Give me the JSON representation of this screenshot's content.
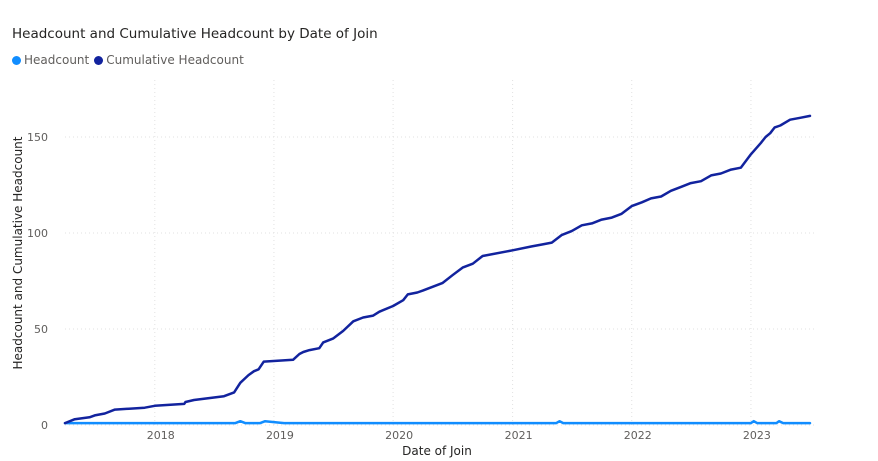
{
  "chart_data": {
    "type": "line",
    "title": "Headcount and Cumulative Headcount by Date of Join",
    "xlabel": "Date of Join",
    "ylabel": "Headcount and Cumulative Headcount",
    "xlim": [
      "2017-04-01",
      "2023-07-01"
    ],
    "ylim": [
      0,
      175
    ],
    "x_ticks": [
      "2018",
      "2019",
      "2020",
      "2021",
      "2022",
      "2023"
    ],
    "y_ticks": [
      0,
      50,
      100,
      150
    ],
    "grid": true,
    "legend_position": "top-left",
    "series": [
      {
        "name": "Headcount",
        "color": "#118DFF",
        "points": [
          [
            "2017-04-01",
            1
          ],
          [
            "2018-09-05",
            1
          ],
          [
            "2018-09-20",
            2
          ],
          [
            "2018-10-05",
            1
          ],
          [
            "2018-11-20",
            1
          ],
          [
            "2018-12-05",
            2
          ],
          [
            "2019-01-01",
            1.5
          ],
          [
            "2019-02-01",
            1
          ],
          [
            "2021-05-15",
            1
          ],
          [
            "2021-05-25",
            2
          ],
          [
            "2021-06-05",
            1
          ],
          [
            "2023-01-01",
            1
          ],
          [
            "2023-01-10",
            2
          ],
          [
            "2023-01-20",
            1
          ],
          [
            "2023-03-20",
            1
          ],
          [
            "2023-03-28",
            2
          ],
          [
            "2023-04-10",
            1
          ],
          [
            "2023-07-01",
            1
          ]
        ]
      },
      {
        "name": "Cumulative Headcount",
        "color": "#12239E",
        "points": [
          [
            "2017-04-01",
            1
          ],
          [
            "2017-05-01",
            3
          ],
          [
            "2017-06-15",
            4
          ],
          [
            "2017-07-01",
            5
          ],
          [
            "2017-08-01",
            6
          ],
          [
            "2017-09-01",
            8
          ],
          [
            "2017-12-01",
            9
          ],
          [
            "2018-01-01",
            10
          ],
          [
            "2018-04-01",
            11
          ],
          [
            "2018-04-05",
            12
          ],
          [
            "2018-05-01",
            13
          ],
          [
            "2018-08-01",
            15
          ],
          [
            "2018-09-01",
            17
          ],
          [
            "2018-09-20",
            22
          ],
          [
            "2018-10-15",
            26
          ],
          [
            "2018-11-01",
            28
          ],
          [
            "2018-11-15",
            29
          ],
          [
            "2018-12-01",
            33
          ],
          [
            "2019-03-01",
            34
          ],
          [
            "2019-03-20",
            37
          ],
          [
            "2019-04-01",
            38
          ],
          [
            "2019-04-20",
            39
          ],
          [
            "2019-05-20",
            40
          ],
          [
            "2019-06-01",
            43
          ],
          [
            "2019-07-01",
            45
          ],
          [
            "2019-08-01",
            49
          ],
          [
            "2019-09-01",
            54
          ],
          [
            "2019-10-01",
            56
          ],
          [
            "2019-11-01",
            57
          ],
          [
            "2019-11-20",
            59
          ],
          [
            "2020-01-01",
            62
          ],
          [
            "2020-02-01",
            65
          ],
          [
            "2020-02-15",
            68
          ],
          [
            "2020-03-15",
            69
          ],
          [
            "2020-04-01",
            70
          ],
          [
            "2020-05-01",
            72
          ],
          [
            "2020-06-01",
            74
          ],
          [
            "2020-07-01",
            78
          ],
          [
            "2020-08-01",
            82
          ],
          [
            "2020-09-01",
            84
          ],
          [
            "2020-10-01",
            88
          ],
          [
            "2021-01-01",
            91
          ],
          [
            "2021-03-01",
            93
          ],
          [
            "2021-04-01",
            94
          ],
          [
            "2021-05-01",
            95
          ],
          [
            "2021-06-01",
            99
          ],
          [
            "2021-07-01",
            101
          ],
          [
            "2021-08-01",
            104
          ],
          [
            "2021-09-01",
            105
          ],
          [
            "2021-10-01",
            107
          ],
          [
            "2021-11-01",
            108
          ],
          [
            "2021-12-01",
            110
          ],
          [
            "2022-01-01",
            114
          ],
          [
            "2022-02-01",
            116
          ],
          [
            "2022-03-01",
            118
          ],
          [
            "2022-04-01",
            119
          ],
          [
            "2022-05-01",
            122
          ],
          [
            "2022-06-01",
            124
          ],
          [
            "2022-07-01",
            126
          ],
          [
            "2022-08-01",
            127
          ],
          [
            "2022-09-01",
            130
          ],
          [
            "2022-10-01",
            131
          ],
          [
            "2022-11-01",
            133
          ],
          [
            "2022-12-01",
            134
          ],
          [
            "2023-01-01",
            141
          ],
          [
            "2023-02-01",
            147
          ],
          [
            "2023-02-15",
            150
          ],
          [
            "2023-03-01",
            152
          ],
          [
            "2023-03-15",
            155
          ],
          [
            "2023-04-01",
            156
          ],
          [
            "2023-05-01",
            159
          ],
          [
            "2023-06-01",
            160
          ],
          [
            "2023-07-01",
            161
          ]
        ]
      }
    ]
  }
}
